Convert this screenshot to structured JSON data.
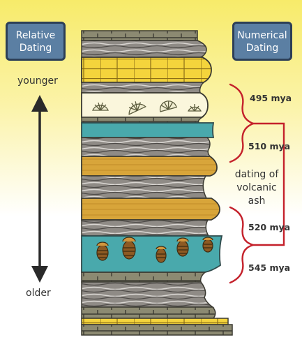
{
  "relative_dating": {
    "line1": "Relative",
    "line2": "Dating"
  },
  "numerical_dating": {
    "line1": "Numerical",
    "line2": "Dating"
  },
  "axis": {
    "top_label": "younger",
    "bottom_label": "older"
  },
  "ages": [
    "495 mya",
    "510 mya",
    "520 mya",
    "545 mya"
  ],
  "ash_note": {
    "line1": "dating of",
    "line2": "volcanic",
    "line3": "ash"
  },
  "colors": {
    "badge_fill": "#5b7fa3",
    "bracket": "#c4212b",
    "yellow_layer": "#f4d43c",
    "teal_layer": "#49a9ac",
    "ash_layer": "#d8a53a",
    "shale_layer": "#8f8b86",
    "brick_layer": "#8c8a72"
  }
}
